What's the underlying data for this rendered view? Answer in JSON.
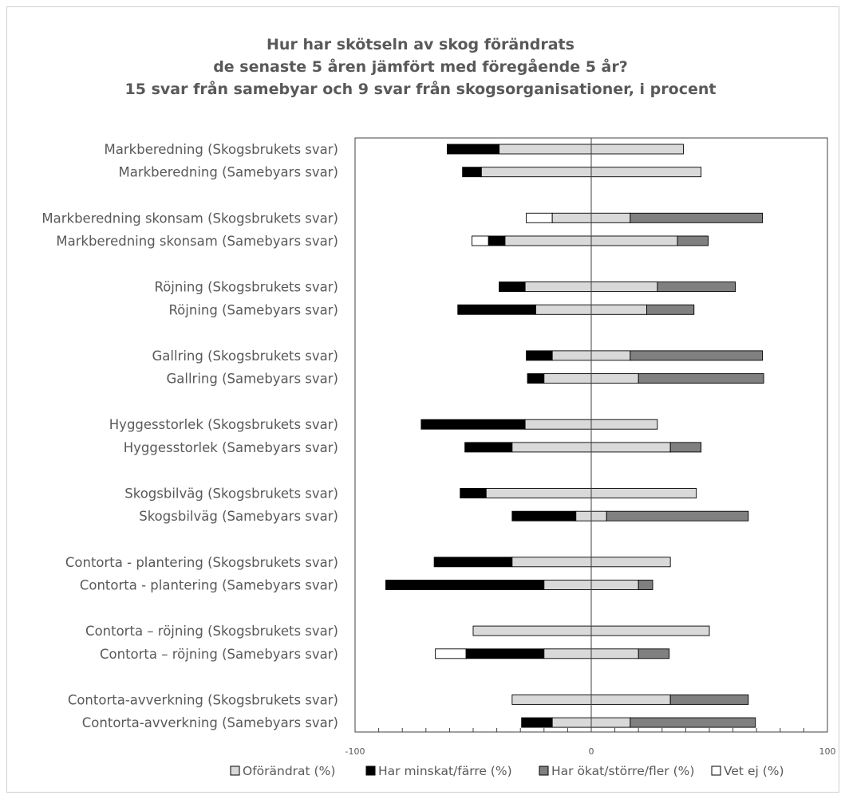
{
  "chart_data": {
    "type": "bar",
    "orientation": "horizontal",
    "stacking": "diverging",
    "title_lines": [
      "Hur har skötseln av skog förändrats",
      "de senaste 5 åren jämfört med föregående 5 år?",
      "15 svar från samebyar och 9 svar från skogsorganisationer, i procent"
    ],
    "xlim": [
      -100,
      100
    ],
    "x_ticks": [
      -100,
      0,
      100
    ],
    "grid": false,
    "legend_position": "bottom",
    "legend": [
      {
        "key": "unchanged",
        "label": "Oförändrat (%)",
        "color": "#d9d9d9"
      },
      {
        "key": "decreased",
        "label": "Har minskat/färre (%)",
        "color": "#000000"
      },
      {
        "key": "increased",
        "label": "Har ökat/större/fler (%)",
        "color": "#808080"
      },
      {
        "key": "unknown",
        "label": "Vet ej (%)",
        "color": "#ffffff"
      }
    ],
    "categories": [
      {
        "label": "Markberedning (Skogsbrukets svar)",
        "unchanged": 78,
        "decreased": 22,
        "increased": 0,
        "unknown": 0
      },
      {
        "label": "Markberedning (Samebyars svar)",
        "unchanged": 93,
        "decreased": 8,
        "increased": 0,
        "unknown": 0
      },
      {
        "label": "Markberedning skonsam (Skogsbrukets svar)",
        "unchanged": 33,
        "decreased": 0,
        "increased": 56,
        "unknown": 11
      },
      {
        "label": "Markberedning skonsam (Samebyars svar)",
        "unchanged": 73,
        "decreased": 7,
        "increased": 13,
        "unknown": 7
      },
      {
        "label": "Röjning (Skogsbrukets svar)",
        "unchanged": 56,
        "decreased": 11,
        "increased": 33,
        "unknown": 0
      },
      {
        "label": "Röjning (Samebyars svar)",
        "unchanged": 47,
        "decreased": 33,
        "increased": 20,
        "unknown": 0
      },
      {
        "label": "Gallring (Skogsbrukets svar)",
        "unchanged": 33,
        "decreased": 11,
        "increased": 56,
        "unknown": 0
      },
      {
        "label": "Gallring (Samebyars svar)",
        "unchanged": 40,
        "decreased": 7,
        "increased": 53,
        "unknown": 0
      },
      {
        "label": "Hyggesstorlek (Skogsbrukets svar)",
        "unchanged": 56,
        "decreased": 44,
        "increased": 0,
        "unknown": 0
      },
      {
        "label": "Hyggesstorlek (Samebyars svar)",
        "unchanged": 67,
        "decreased": 20,
        "increased": 13,
        "unknown": 0
      },
      {
        "label": "Skogsbilväg (Skogsbrukets svar)",
        "unchanged": 89,
        "decreased": 11,
        "increased": 0,
        "unknown": 0
      },
      {
        "label": "Skogsbilväg (Samebyars svar)",
        "unchanged": 13,
        "decreased": 27,
        "increased": 60,
        "unknown": 0
      },
      {
        "label": "Contorta - plantering (Skogsbrukets svar)",
        "unchanged": 67,
        "decreased": 33,
        "increased": 0,
        "unknown": 0
      },
      {
        "label": "Contorta - plantering (Samebyars svar)",
        "unchanged": 40,
        "decreased": 67,
        "increased": 6,
        "unknown": 0
      },
      {
        "label": "Contorta – röjning (Skogsbrukets svar)",
        "unchanged": 100,
        "decreased": 0,
        "increased": 0,
        "unknown": 0
      },
      {
        "label": "Contorta – röjning (Samebyars svar)",
        "unchanged": 40,
        "decreased": 33,
        "increased": 13,
        "unknown": 13
      },
      {
        "label": "Contorta-avverkning (Skogsbrukets svar)",
        "unchanged": 67,
        "decreased": 0,
        "increased": 33,
        "unknown": 0
      },
      {
        "label": "Contorta-avverkning (Samebyars svar)",
        "unchanged": 33,
        "decreased": 13,
        "increased": 53,
        "unknown": 0
      }
    ]
  }
}
